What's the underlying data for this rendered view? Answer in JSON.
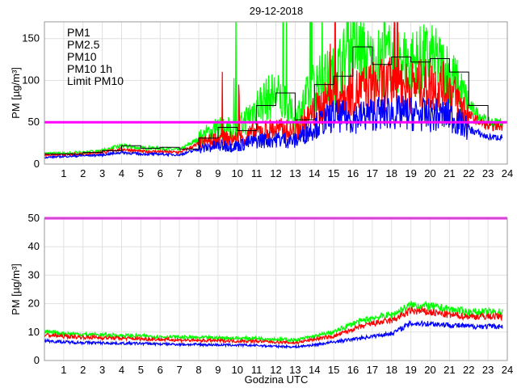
{
  "chart_data": [
    {
      "type": "line",
      "title": "29-12-2018",
      "xlabel": "",
      "ylabel": "PM [µg/m³]",
      "xlim": [
        0,
        24
      ],
      "ylim": [
        0,
        170
      ],
      "xticks": [
        1,
        2,
        3,
        4,
        5,
        6,
        7,
        8,
        9,
        10,
        11,
        12,
        13,
        14,
        15,
        16,
        17,
        18,
        19,
        20,
        21,
        22,
        23,
        24
      ],
      "yticks": [
        0,
        50,
        100,
        150
      ],
      "grid": true,
      "legend_position": "top-left",
      "limit": {
        "name": "Limit PM10",
        "value": 50,
        "color": "#ff00ff"
      },
      "series": [
        {
          "name": "PM1",
          "color": "#0000ff",
          "hourly": [
            8,
            9,
            10,
            11,
            14,
            12,
            12,
            11,
            18,
            22,
            22,
            28,
            30,
            28,
            45,
            58,
            55,
            60,
            62,
            60,
            58,
            58,
            42,
            32
          ]
        },
        {
          "name": "PM2.5",
          "color": "#ff0000",
          "hourly": [
            11,
            11,
            12,
            14,
            18,
            15,
            15,
            14,
            24,
            30,
            30,
            38,
            42,
            38,
            62,
            82,
            85,
            92,
            95,
            92,
            95,
            90,
            58,
            45
          ]
        },
        {
          "name": "PM10",
          "color": "#00ff00",
          "hourly": [
            13,
            13,
            14,
            16,
            22,
            19,
            19,
            17,
            30,
            44,
            40,
            70,
            85,
            53,
            95,
            105,
            140,
            119,
            128,
            122,
            126,
            110,
            70,
            50
          ]
        },
        {
          "name": "PM10 1h",
          "color": "#000000",
          "step": true,
          "hourly": [
            12,
            12,
            14,
            16,
            22,
            19,
            20,
            18,
            31,
            44,
            40,
            70,
            85,
            53,
            95,
            105,
            140,
            119,
            128,
            122,
            126,
            110,
            70,
            50
          ]
        }
      ]
    },
    {
      "type": "line",
      "title": "",
      "xlabel": "Godzina UTC",
      "ylabel": "PM [µg/m³]",
      "xlim": [
        0,
        24
      ],
      "ylim": [
        0,
        50
      ],
      "xticks": [
        1,
        2,
        3,
        4,
        5,
        6,
        7,
        8,
        9,
        10,
        11,
        12,
        13,
        14,
        15,
        16,
        17,
        18,
        19,
        20,
        21,
        22,
        23,
        24
      ],
      "yticks": [
        0,
        10,
        20,
        30,
        40,
        50
      ],
      "grid": true,
      "limit": {
        "name": "Limit PM10",
        "value": 50,
        "color": "#ff00ff"
      },
      "series": [
        {
          "name": "PM1",
          "color": "#0000ff",
          "hourly": [
            7,
            6.5,
            6.3,
            6.2,
            6,
            6,
            5.8,
            5.7,
            5.6,
            5.5,
            5.4,
            5.3,
            5,
            4.8,
            5.5,
            6.5,
            7.5,
            8.5,
            9.5,
            13,
            13,
            12.5,
            12,
            12
          ]
        },
        {
          "name": "PM2.5",
          "color": "#ff0000",
          "hourly": [
            9,
            8.5,
            8.2,
            8,
            7.8,
            7.6,
            7.4,
            7.2,
            7,
            7,
            6.8,
            6.8,
            6.5,
            6.2,
            7.5,
            8.5,
            11,
            13,
            14,
            17.5,
            17,
            16,
            15.5,
            15.5
          ]
        },
        {
          "name": "PM10",
          "color": "#00ff00",
          "hourly": [
            10,
            9.5,
            9.2,
            9,
            8.8,
            8.6,
            8.4,
            8.2,
            8,
            8,
            7.8,
            7.8,
            7.5,
            7.2,
            8.5,
            10,
            13,
            15,
            16,
            19.5,
            19,
            18,
            17,
            17
          ]
        }
      ]
    }
  ]
}
